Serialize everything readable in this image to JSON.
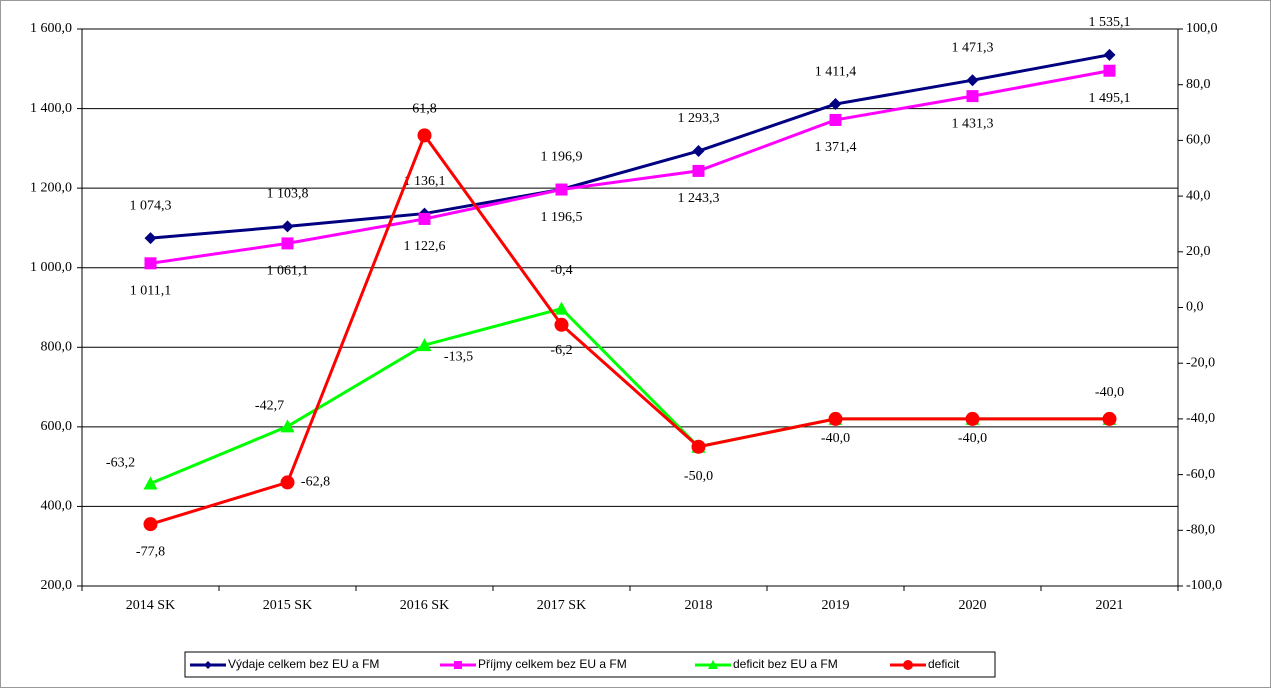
{
  "chart_data": {
    "type": "line",
    "categories": [
      "2014 SK",
      "2015 SK",
      "2016 SK",
      "2017 SK",
      "2018",
      "2019",
      "2020",
      "2021"
    ],
    "ylim": [
      200,
      1600
    ],
    "yticks": [
      {
        "value": 200,
        "label": "200,0"
      },
      {
        "value": 400,
        "label": "400,0"
      },
      {
        "value": 600,
        "label": "600,0"
      },
      {
        "value": 800,
        "label": "800,0"
      },
      {
        "value": 1000,
        "label": "1 000,0"
      },
      {
        "value": 1200,
        "label": "1 200,0"
      },
      {
        "value": 1400,
        "label": "1 400,0"
      },
      {
        "value": 1600,
        "label": "1 600,0"
      }
    ],
    "y2lim": [
      -100,
      100
    ],
    "y2ticks": [
      {
        "value": -100,
        "label": "-100,0"
      },
      {
        "value": -80,
        "label": "-80,0"
      },
      {
        "value": -60,
        "label": "-60,0"
      },
      {
        "value": -40,
        "label": "-40,0"
      },
      {
        "value": -20,
        "label": "-20,0"
      },
      {
        "value": 0,
        "label": "0,0"
      },
      {
        "value": 20,
        "label": "20,0"
      },
      {
        "value": 40,
        "label": "40,0"
      },
      {
        "value": 60,
        "label": "60,0"
      },
      {
        "value": 80,
        "label": "80,0"
      },
      {
        "value": 100,
        "label": "100,0"
      }
    ],
    "grid": true,
    "legend": "bottom",
    "series": [
      {
        "name": "Výdaje celkem bez EU a FM",
        "color": "#000080",
        "marker": "diamond",
        "values": [
          1074.3,
          1103.8,
          1136.1,
          1196.9,
          1293.3,
          1411.4,
          1471.3,
          1535.1
        ],
        "value_labels": [
          "1 074,3",
          "1 103,8",
          "1 136,1",
          "1 196,9",
          "1 293,3",
          "1 411,4",
          "1 471,3",
          "1 535,1"
        ]
      },
      {
        "name": "Příjmy celkem bez EU a FM",
        "color": "#ff00ff",
        "marker": "square",
        "values": [
          1011.1,
          1061.1,
          1122.6,
          1196.5,
          1243.3,
          1371.4,
          1431.3,
          1495.1
        ],
        "value_labels": [
          "1 011,1",
          "1 061,1",
          "1 122,6",
          "1 196,5",
          "1 243,3",
          "1 371,4",
          "1 431,3",
          "1 495,1"
        ]
      },
      {
        "name": "deficit bez EU a FM",
        "color": "#00ff00",
        "marker": "triangle",
        "axis": "y2",
        "values": [
          -63.2,
          -42.7,
          -13.5,
          -0.4,
          -50.0,
          -40.0,
          -40.0,
          -40.0
        ],
        "value_labels": [
          "-63,2",
          "-42,7",
          "-13,5",
          "-0,4",
          null,
          null,
          null,
          null
        ]
      },
      {
        "name": "deficit",
        "color": "#ff0000",
        "marker": "circle",
        "axis": "y2",
        "values": [
          -77.8,
          -62.8,
          61.8,
          -6.2,
          -50.0,
          -40.0,
          -40.0,
          -40.0
        ],
        "value_labels": [
          "-77,8",
          "-62,8",
          "61,8",
          "-6,2",
          "-50,0",
          "-40,0",
          "-40,0",
          "-40,0"
        ]
      }
    ]
  }
}
